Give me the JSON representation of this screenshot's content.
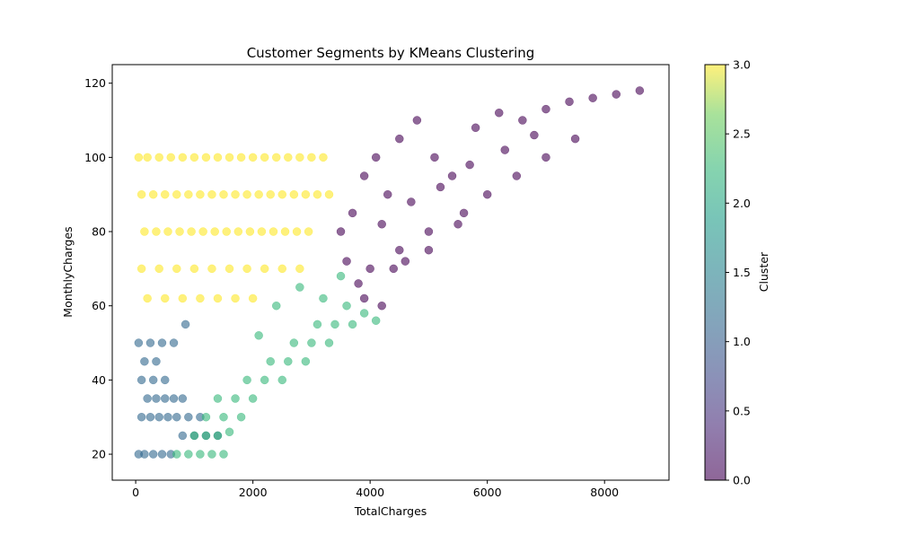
{
  "chart_data": {
    "type": "scatter",
    "title": "Customer Segments by KMeans Clustering",
    "xlabel": "TotalCharges",
    "ylabel": "MonthlyCharges",
    "xlim": [
      -400,
      9100
    ],
    "ylim": [
      13,
      125
    ],
    "xticks": [
      0,
      2000,
      4000,
      6000,
      8000
    ],
    "xtick_labels": [
      "0",
      "2000",
      "4000",
      "6000",
      "8000"
    ],
    "yticks": [
      20,
      40,
      60,
      80,
      100,
      120
    ],
    "ytick_labels": [
      "20",
      "40",
      "60",
      "80",
      "100",
      "120"
    ],
    "grid": false,
    "colorbar": {
      "label": "Cluster",
      "min": 0.0,
      "max": 3.0,
      "ticks": [
        0.0,
        0.5,
        1.0,
        1.5,
        2.0,
        2.5,
        3.0
      ],
      "tick_labels": [
        "0.0",
        "0.5",
        "1.0",
        "1.5",
        "2.0",
        "2.5",
        "3.0"
      ],
      "colormap": "viridis",
      "alpha": 0.6
    },
    "cluster_colors": {
      "0": "#440154",
      "1": "#31688e",
      "2": "#35b779",
      "3": "#fde725"
    },
    "series": [
      {
        "cluster": 0,
        "x": [
          3500,
          3700,
          3900,
          4100,
          4300,
          4500,
          4800,
          5100,
          5400,
          5800,
          6200,
          6600,
          7000,
          7400,
          7800,
          8200,
          8600,
          4000,
          4500,
          5000,
          5500,
          6000,
          6500,
          7000,
          7500,
          3600,
          4200,
          4700,
          5200,
          5700,
          6300,
          6800,
          3800,
          4400,
          5000,
          5600,
          3900,
          4600,
          4200
        ],
        "y": [
          80,
          85,
          95,
          100,
          90,
          105,
          110,
          100,
          95,
          108,
          112,
          110,
          113,
          115,
          116,
          117,
          118,
          70,
          75,
          80,
          82,
          90,
          95,
          100,
          105,
          72,
          82,
          88,
          92,
          98,
          102,
          106,
          66,
          70,
          75,
          85,
          62,
          72,
          60
        ]
      },
      {
        "cluster": 1,
        "x": [
          50,
          150,
          300,
          450,
          600,
          800,
          1000,
          1200,
          1400,
          100,
          250,
          400,
          550,
          700,
          900,
          1100,
          200,
          350,
          500,
          650,
          800,
          100,
          300,
          500,
          150,
          350,
          50,
          250,
          450,
          650,
          850
        ],
        "y": [
          20,
          20,
          20,
          20,
          20,
          25,
          25,
          25,
          25,
          30,
          30,
          30,
          30,
          30,
          30,
          30,
          35,
          35,
          35,
          35,
          35,
          40,
          40,
          40,
          45,
          45,
          50,
          50,
          50,
          50,
          55
        ]
      },
      {
        "cluster": 2,
        "x": [
          700,
          900,
          1100,
          1300,
          1500,
          1000,
          1200,
          1400,
          1600,
          1200,
          1500,
          1800,
          1400,
          1700,
          2000,
          1900,
          2200,
          2500,
          2300,
          2600,
          2900,
          2700,
          3000,
          3300,
          3100,
          3400,
          3700,
          3600,
          3900,
          3200,
          2800,
          2400,
          2100,
          3500,
          4100
        ],
        "y": [
          20,
          20,
          20,
          20,
          20,
          25,
          25,
          25,
          26,
          30,
          30,
          30,
          35,
          35,
          35,
          40,
          40,
          40,
          45,
          45,
          45,
          50,
          50,
          50,
          55,
          55,
          55,
          60,
          58,
          62,
          65,
          60,
          52,
          68,
          56
        ]
      },
      {
        "cluster": 3,
        "x": [
          50,
          200,
          400,
          600,
          800,
          1000,
          1200,
          1400,
          1600,
          1800,
          2000,
          2200,
          2400,
          2600,
          2800,
          3000,
          3200,
          100,
          300,
          500,
          700,
          900,
          1100,
          1300,
          1500,
          1700,
          1900,
          2100,
          2300,
          2500,
          2700,
          2900,
          3100,
          3300,
          150,
          350,
          550,
          750,
          950,
          1150,
          1350,
          1550,
          1750,
          1950,
          2150,
          2350,
          2550,
          2750,
          2950,
          100,
          400,
          700,
          1000,
          1300,
          1600,
          1900,
          2200,
          2500,
          2800,
          200,
          500,
          800,
          1100,
          1400,
          1700,
          2000
        ],
        "y": [
          100,
          100,
          100,
          100,
          100,
          100,
          100,
          100,
          100,
          100,
          100,
          100,
          100,
          100,
          100,
          100,
          100,
          90,
          90,
          90,
          90,
          90,
          90,
          90,
          90,
          90,
          90,
          90,
          90,
          90,
          90,
          90,
          90,
          90,
          80,
          80,
          80,
          80,
          80,
          80,
          80,
          80,
          80,
          80,
          80,
          80,
          80,
          80,
          80,
          70,
          70,
          70,
          70,
          70,
          70,
          70,
          70,
          70,
          70,
          62,
          62,
          62,
          62,
          62,
          62,
          62
        ]
      }
    ]
  }
}
